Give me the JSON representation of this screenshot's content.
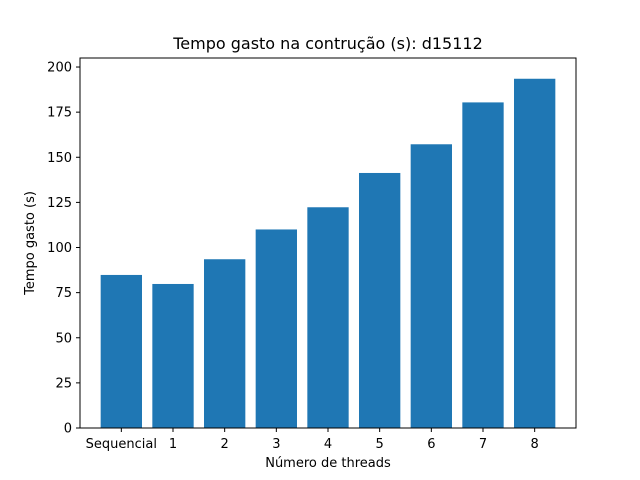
{
  "chart_data": {
    "type": "bar",
    "title": "Tempo gasto na contrução (s): d15112",
    "xlabel": "Número de threads",
    "ylabel": "Tempo gasto (s)",
    "categories": [
      "Sequencial",
      "1",
      "2",
      "3",
      "4",
      "5",
      "6",
      "7",
      "8"
    ],
    "values": [
      84.8,
      79.8,
      93.5,
      110.0,
      122.3,
      141.3,
      157.2,
      180.4,
      193.5
    ],
    "ylim": [
      0,
      205
    ],
    "yticks": [
      0,
      25,
      50,
      75,
      100,
      125,
      150,
      175,
      200
    ],
    "bar_color": "#1f77b4",
    "grid": false
  }
}
